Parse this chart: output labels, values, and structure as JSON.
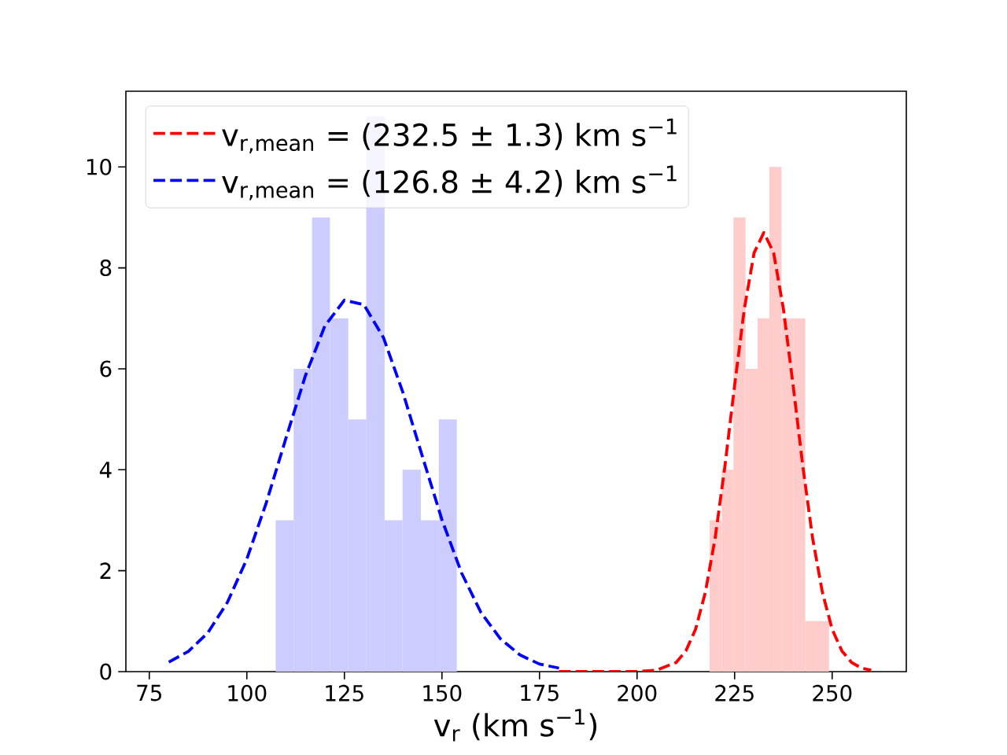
{
  "chart_data": {
    "type": "histogram",
    "xlabel": "v$_{r}$ (km s$^{−1}$)",
    "xlim": [
      69,
      269
    ],
    "xticks": [
      75,
      100,
      125,
      150,
      175,
      200,
      225,
      250
    ],
    "ylim": [
      0,
      11.5
    ],
    "yticks": [
      0,
      2,
      4,
      6,
      8,
      10
    ],
    "legend": "top left",
    "grid": false,
    "series": [
      {
        "color": "#ffcccc",
        "bins": [
          218.6,
          221.7,
          224.7,
          227.8,
          230.9,
          233.9,
          237.0,
          240.0,
          243.1,
          246.2,
          249.2
        ],
        "values": [
          3,
          4,
          9,
          6,
          7,
          10,
          7,
          7,
          1,
          1
        ]
      },
      {
        "color": "#ccccff",
        "bins": [
          107.4,
          112.0,
          116.7,
          121.3,
          126.0,
          130.6,
          135.3,
          139.9,
          144.6,
          149.2,
          153.8
        ],
        "values": [
          3,
          6,
          9,
          7,
          5,
          11,
          3,
          4,
          3,
          5
        ]
      },
      {
        "type": "line",
        "name": "v$_{r,mean}$ = (232.5 ± 1.3) km s$^{−1}$",
        "color": "#ff0000",
        "line_style": "dashed",
        "x": [
          180,
          190,
          200,
          205,
          210,
          212.5,
          215,
          217.5,
          220,
          222.5,
          225,
          227.5,
          230,
          232.5,
          235,
          237.5,
          240,
          242.5,
          245,
          247.5,
          250,
          252.5,
          255,
          257.5,
          260
        ],
        "values": [
          0,
          0,
          0,
          0.03,
          0.18,
          0.41,
          0.84,
          1.57,
          2.64,
          4.06,
          5.67,
          7.19,
          8.3,
          8.7,
          8.3,
          7.19,
          5.67,
          4.06,
          2.64,
          1.57,
          0.84,
          0.41,
          0.18,
          0.07,
          0.03
        ]
      },
      {
        "type": "line",
        "name": "v$_{r,mean}$ = (126.8 ± 4.2) km s$^{−1}$",
        "color": "#0000ff",
        "line_style": "dashed",
        "x": [
          80,
          85,
          90,
          95,
          100,
          105,
          110,
          115,
          120,
          125,
          130,
          135,
          140,
          145,
          150,
          155,
          160,
          165,
          170,
          175,
          180
        ],
        "values": [
          0.19,
          0.4,
          0.77,
          1.37,
          2.23,
          3.35,
          4.62,
          5.86,
          6.85,
          7.36,
          7.27,
          6.62,
          5.53,
          4.26,
          3.01,
          1.96,
          1.17,
          0.65,
          0.33,
          0.15,
          0.07
        ]
      }
    ]
  }
}
